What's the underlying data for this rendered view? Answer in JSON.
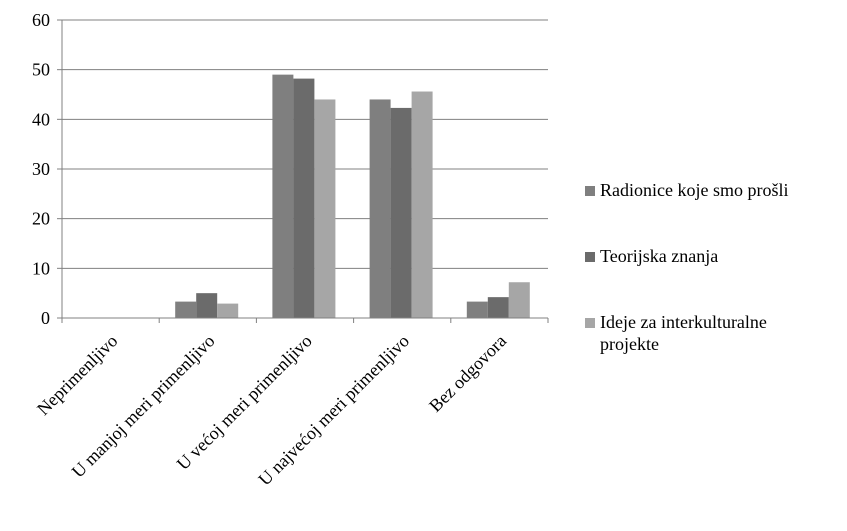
{
  "chart_data": {
    "type": "bar",
    "title": "",
    "xlabel": "",
    "ylabel": "",
    "ylim": [
      0,
      60
    ],
    "yticks": [
      0,
      10,
      20,
      30,
      40,
      50,
      60
    ],
    "grid": true,
    "legend_position": "right",
    "categories": [
      "Neprimenljivo",
      "U manjoj meri primenljivo",
      "U većoj meri primenljivo",
      "U najvećoj meri primenljivo",
      "Bez odgovora"
    ],
    "series": [
      {
        "name": "Radionice koje smo prošli",
        "color": "#7f7f7f",
        "values": [
          0,
          3.3,
          49,
          44,
          3.3
        ]
      },
      {
        "name": "Teorijska znanja",
        "color": "#6b6b6b",
        "values": [
          0,
          5,
          48.2,
          42.3,
          4.2
        ]
      },
      {
        "name": "Ideje za interkulturalne projekte",
        "color": "#a6a6a6",
        "values": [
          0,
          2.9,
          44,
          45.6,
          7.2
        ]
      }
    ],
    "legend_lines": [
      [
        "Radionice koje smo prošli"
      ],
      [
        "Teorijska znanja"
      ],
      [
        "Ideje za interkulturalne",
        "projekte"
      ]
    ]
  }
}
